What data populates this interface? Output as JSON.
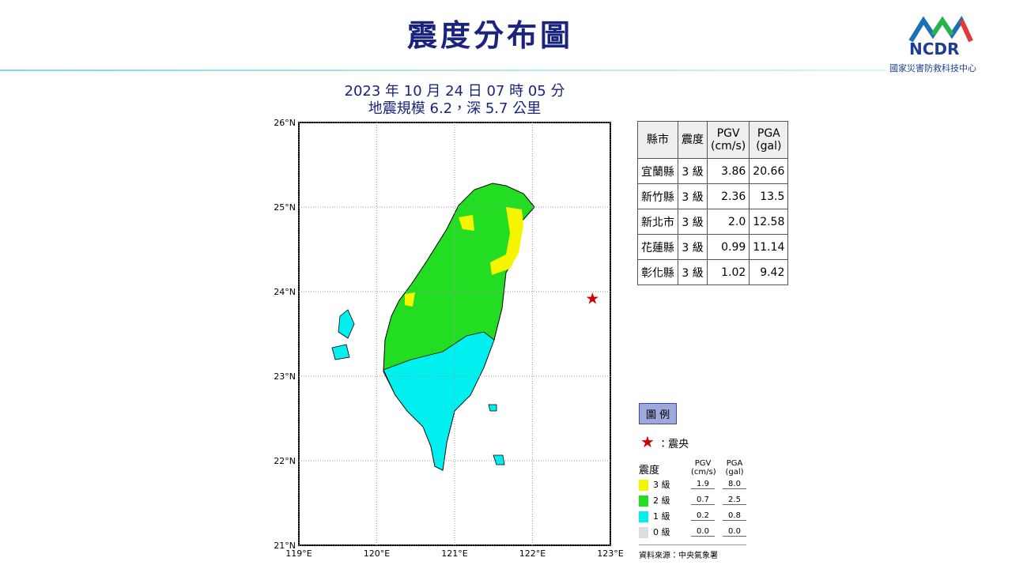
{
  "header": {
    "title": "震度分布圖",
    "logo": "NCDR",
    "org": "國家災害防救科技中心"
  },
  "map": {
    "title_lines": [
      "2023 年 10 月 24 日 07 時 05 分",
      "地震規模 6.2，深 5.7 公里"
    ],
    "xlim": [
      119,
      123
    ],
    "ylim": [
      21,
      26
    ],
    "xticks": [
      {
        "value": 119,
        "label": "119°E"
      },
      {
        "value": 120,
        "label": "120°E"
      },
      {
        "value": 121,
        "label": "121°E"
      },
      {
        "value": 122,
        "label": "122°E"
      },
      {
        "value": 123,
        "label": "123°E"
      }
    ],
    "yticks": [
      {
        "value": 21,
        "label": "21°N"
      },
      {
        "value": 22,
        "label": "22°N"
      },
      {
        "value": 23,
        "label": "23°N"
      },
      {
        "value": 24,
        "label": "24°N"
      },
      {
        "value": 25,
        "label": "25°N"
      },
      {
        "value": 26,
        "label": "26°N"
      }
    ],
    "epicenter": {
      "lon": 122.77,
      "lat": 23.92
    }
  },
  "table": {
    "columns": [
      "縣市",
      "震度",
      "PGV\n(cm/s)",
      "PGA\n(gal)"
    ],
    "rows": [
      [
        "宜蘭縣",
        "3 級",
        "3.86",
        "20.66"
      ],
      [
        "新竹縣",
        "3 級",
        "2.36",
        "13.5"
      ],
      [
        "新北市",
        "3 級",
        "2.0",
        "12.58"
      ],
      [
        "花蓮縣",
        "3 級",
        "0.99",
        "11.14"
      ],
      [
        "彰化縣",
        "3 級",
        "1.02",
        "9.42"
      ]
    ]
  },
  "legend": {
    "title": "圖 例",
    "epicenter": "：震央",
    "intensity": "震度",
    "pgv": "PGV\n(cm/s)",
    "pga": "PGA\n(gal)",
    "rows": [
      {
        "label": "3 級",
        "pgv": "1.9",
        "pga": "8.0",
        "color": "#f5f500"
      },
      {
        "label": "2 級",
        "pgv": "0.7",
        "pga": "2.5",
        "color": "#22dd22"
      },
      {
        "label": "1 級",
        "pgv": "0.2",
        "pga": "0.8",
        "color": "#00f0f0"
      },
      {
        "label": "0 級",
        "pgv": "0.0",
        "pga": "0.0",
        "color": "#dddddd"
      }
    ],
    "source": "資料來源：中央氣象署"
  }
}
